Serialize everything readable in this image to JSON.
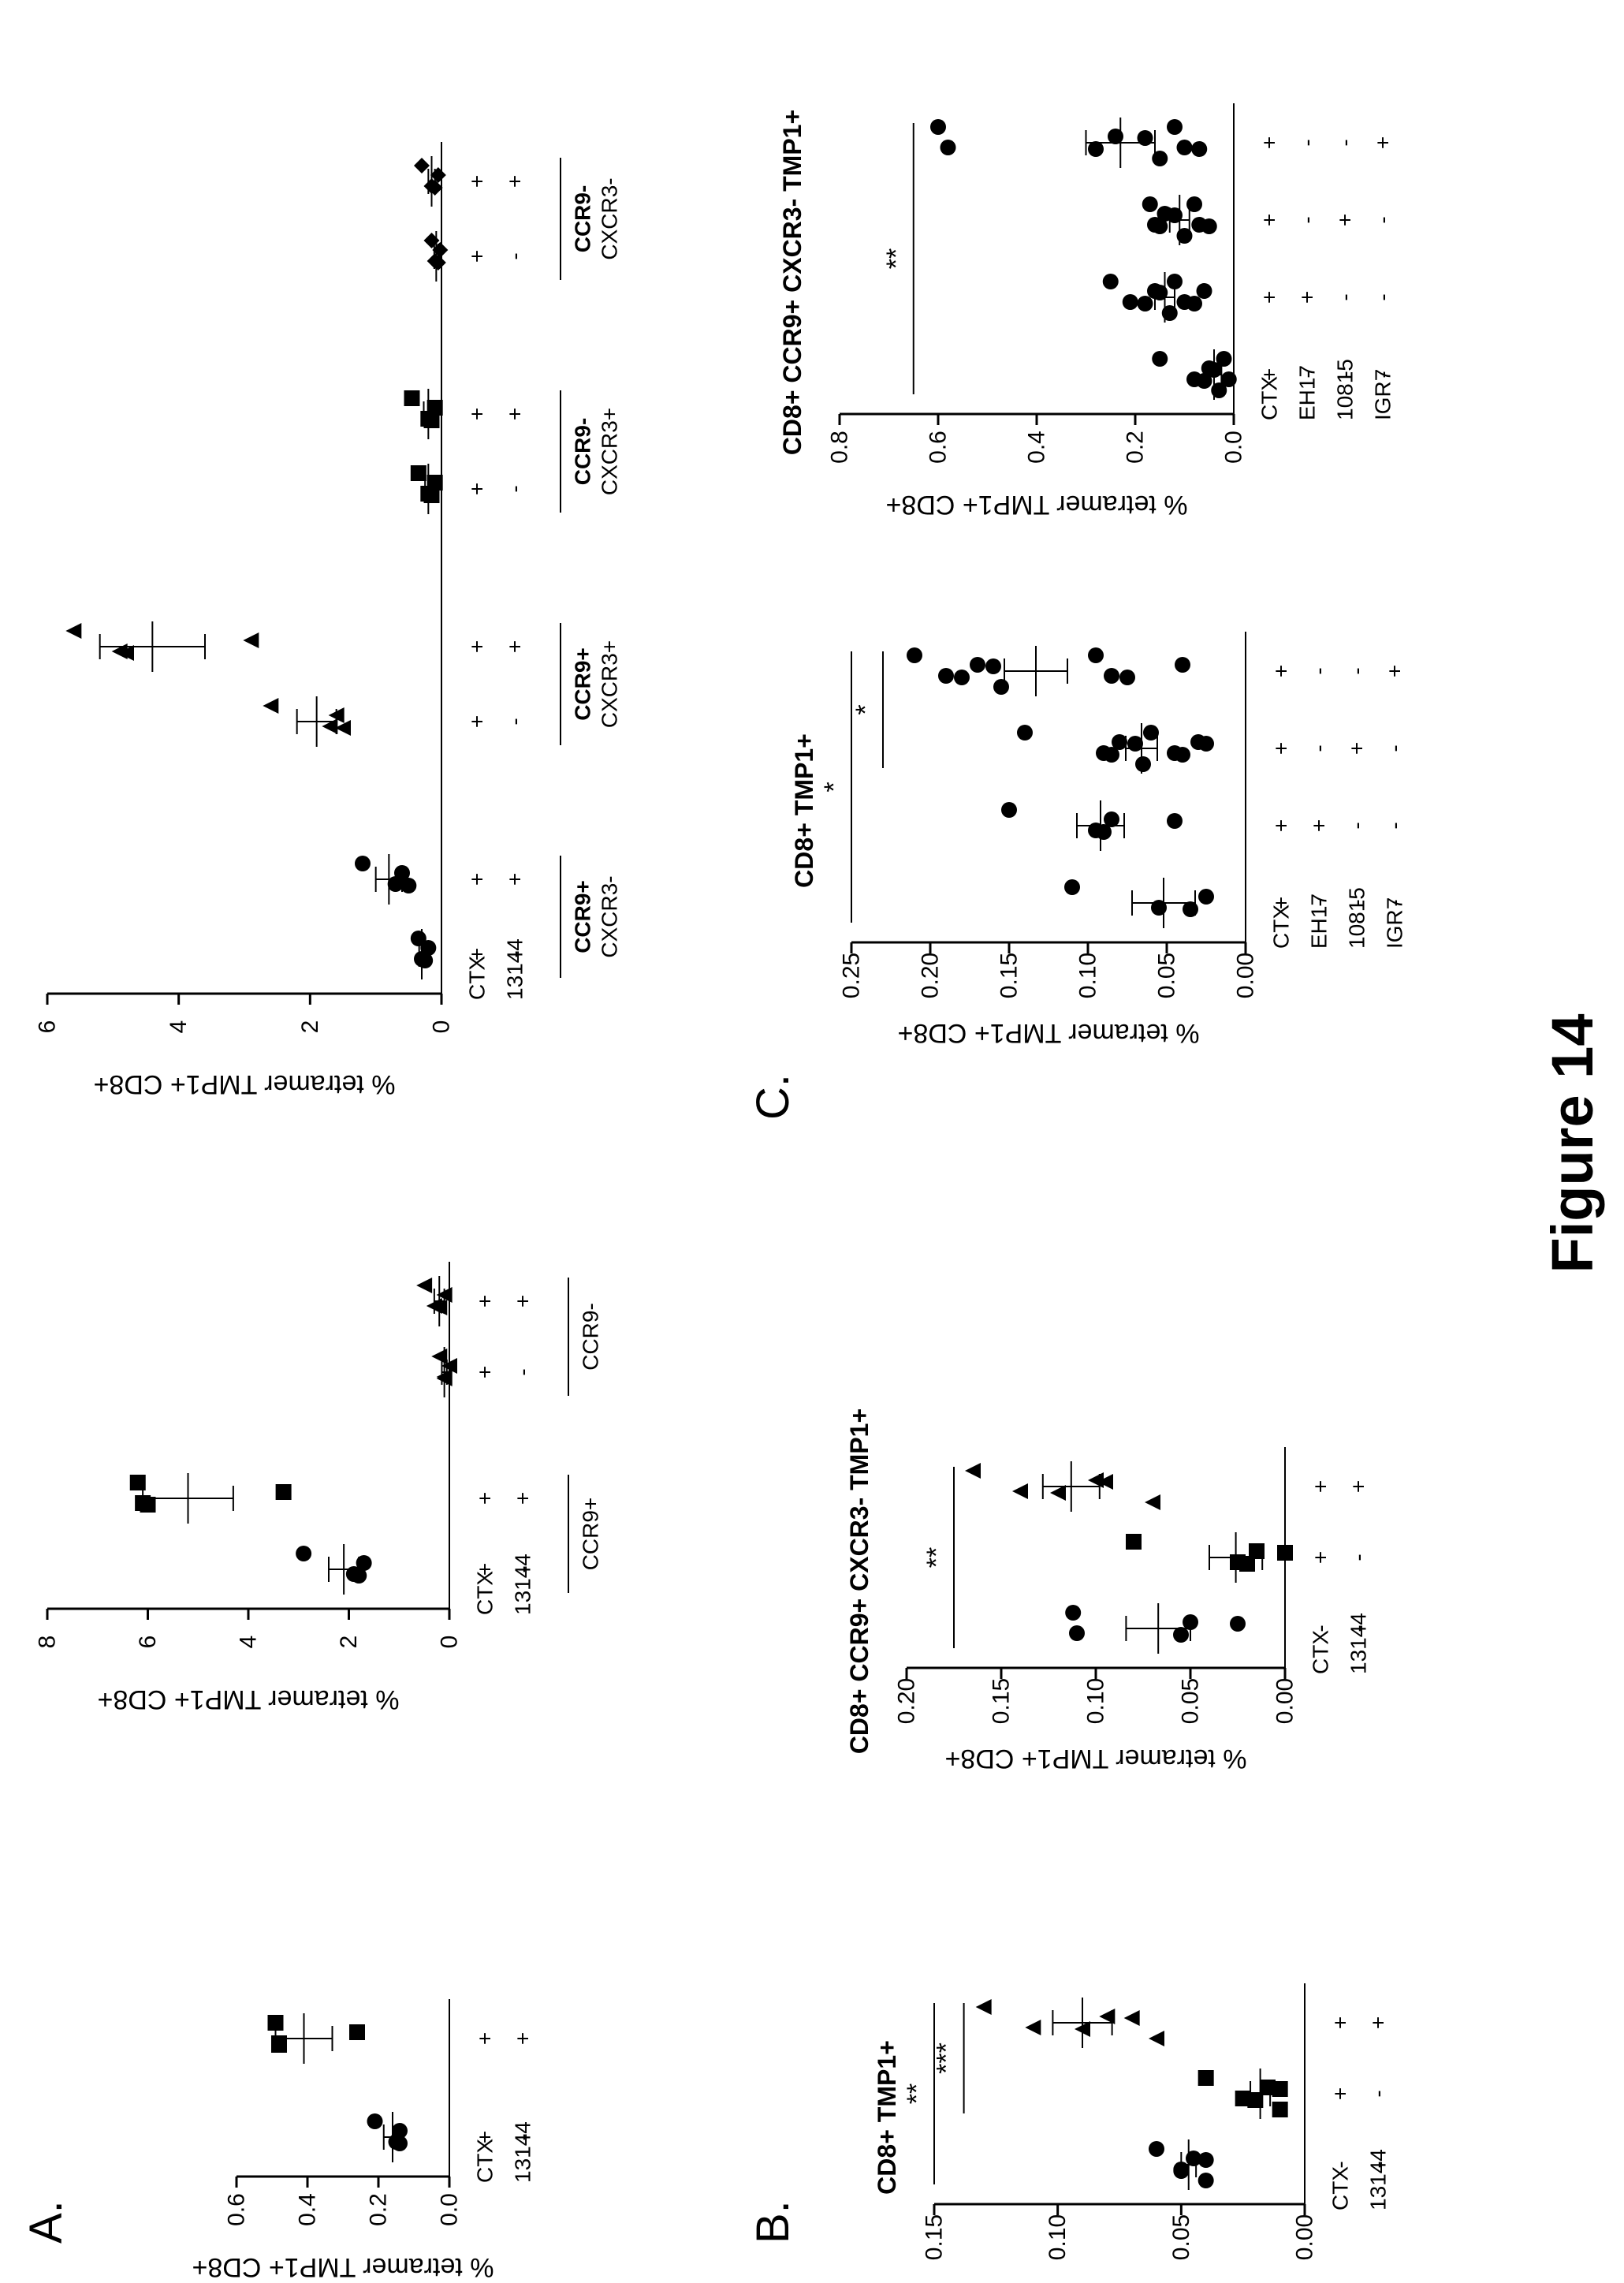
{
  "figure_label": "Figure 14",
  "panel_labels": {
    "A": "A.",
    "B": "B.",
    "C": "C."
  },
  "chart_data": [
    {
      "id": "A1",
      "type": "scatter",
      "title": "",
      "ylabel": "% tetramer TMP1+ CD8+",
      "ylim": [
        0,
        0.6
      ],
      "yticks": [
        "0.0",
        "0.2",
        "0.4",
        "0.6"
      ],
      "row_labels": [
        "CTX",
        "13144"
      ],
      "conditions": [
        [
          "+",
          "-"
        ],
        [
          "+",
          "+"
        ]
      ],
      "groups": [],
      "series": [
        {
          "marker": "circle",
          "values": [
            0.21,
            0.15,
            0.14,
            0.14
          ],
          "mean": 0.16,
          "sem": 0.025
        },
        {
          "marker": "square",
          "values": [
            0.49,
            0.48,
            0.48,
            0.26
          ],
          "mean": 0.41,
          "sem": 0.08
        }
      ],
      "significance": []
    },
    {
      "id": "A2",
      "type": "scatter",
      "title": "",
      "ylabel": "% tetramer TMP1+ CD8+",
      "ylim": [
        0,
        8
      ],
      "yticks": [
        "0",
        "2",
        "4",
        "6",
        "8"
      ],
      "row_labels": [
        "CTX",
        "13144"
      ],
      "conditions": [
        [
          "+",
          "-"
        ],
        [
          "+",
          "+"
        ],
        [
          "+",
          "-"
        ],
        [
          "+",
          "+"
        ]
      ],
      "groups": [
        {
          "label": "CCR9+",
          "from": 0,
          "to": 1
        },
        {
          "label": "CCR9-",
          "from": 2,
          "to": 3
        }
      ],
      "series": [
        {
          "marker": "circle",
          "values": [
            2.9,
            1.9,
            1.8,
            1.7
          ],
          "mean": 2.1,
          "sem": 0.3
        },
        {
          "marker": "square",
          "values": [
            6.2,
            6.1,
            6.0,
            3.3
          ],
          "mean": 5.2,
          "sem": 0.9
        },
        {
          "marker": "triangle",
          "values": [
            0.2,
            0.1,
            0.1,
            0.0
          ],
          "mean": 0.1,
          "sem": 0.05
        },
        {
          "marker": "triangle",
          "values": [
            0.5,
            0.3,
            0.2,
            0.1
          ],
          "mean": 0.2,
          "sem": 0.1
        }
      ],
      "significance": []
    },
    {
      "id": "A3",
      "type": "scatter",
      "title": "",
      "ylabel": "% tetramer TMP1+ CD8+",
      "ylim": [
        0,
        6
      ],
      "yticks": [
        "0",
        "2",
        "4",
        "6"
      ],
      "row_labels": [
        "CTX",
        "13144"
      ],
      "conditions": [
        [
          "+",
          "-"
        ],
        [
          "+",
          "+"
        ],
        [
          "+",
          "-"
        ],
        [
          "+",
          "+"
        ],
        [
          "+",
          "-"
        ],
        [
          "+",
          "+"
        ],
        [
          "+",
          "-"
        ],
        [
          "+",
          "+"
        ]
      ],
      "groups": [
        {
          "label": "CCR9+",
          "label2": "CXCR3-",
          "from": 0,
          "to": 1
        },
        {
          "label": "CCR9+",
          "label2": "CXCR3+",
          "from": 2,
          "to": 3
        },
        {
          "label": "CCR9-",
          "label2": "CXCR3+",
          "from": 4,
          "to": 5
        },
        {
          "label": "CCR9-",
          "label2": "CXCR3-",
          "from": 6,
          "to": 7
        }
      ],
      "series": [
        {
          "marker": "circle",
          "values": [
            0.35,
            0.3,
            0.25,
            0.2
          ],
          "mean": 0.3,
          "sem": 0.04
        },
        {
          "marker": "circle",
          "values": [
            1.2,
            0.7,
            0.5,
            0.6
          ],
          "mean": 0.8,
          "sem": 0.2
        },
        {
          "marker": "triangle",
          "values": [
            2.6,
            1.7,
            1.5,
            1.6
          ],
          "mean": 1.9,
          "sem": 0.3
        },
        {
          "marker": "triangle",
          "values": [
            5.6,
            4.9,
            4.8,
            2.9
          ],
          "mean": 4.4,
          "sem": 0.8
        },
        {
          "marker": "square",
          "values": [
            0.35,
            0.2,
            0.15,
            0.1
          ],
          "mean": 0.2,
          "sem": 0.05
        },
        {
          "marker": "square",
          "values": [
            0.45,
            0.2,
            0.15,
            0.1
          ],
          "mean": 0.2,
          "sem": 0.07
        },
        {
          "marker": "diamond",
          "values": [
            0.15,
            0.1,
            0.05,
            0.02
          ],
          "mean": 0.08,
          "sem": 0.03
        },
        {
          "marker": "diamond",
          "values": [
            0.3,
            0.15,
            0.1,
            0.05
          ],
          "mean": 0.15,
          "sem": 0.05
        }
      ],
      "significance": []
    },
    {
      "id": "B1",
      "type": "scatter",
      "title": "CD8+ TMP1+",
      "ylabel": "% tetramer TMP1+ CD8+",
      "ylim": [
        0,
        0.15
      ],
      "yticks": [
        "0.00",
        "0.05",
        "0.10",
        "0.15"
      ],
      "row_labels": [
        "CTX",
        "13144"
      ],
      "conditions": [
        [
          "-",
          "-"
        ],
        [
          "+",
          "-"
        ],
        [
          "+",
          "+"
        ]
      ],
      "groups": [],
      "series": [
        {
          "marker": "circle",
          "values": [
            0.06,
            0.05,
            0.05,
            0.045,
            0.04,
            0.04
          ],
          "mean": 0.047,
          "sem": 0.003
        },
        {
          "marker": "square",
          "values": [
            0.04,
            0.025,
            0.02,
            0.015,
            0.01,
            0.01
          ],
          "mean": 0.018,
          "sem": 0.004
        },
        {
          "marker": "triangle",
          "values": [
            0.13,
            0.11,
            0.09,
            0.08,
            0.07,
            0.06
          ],
          "mean": 0.09,
          "sem": 0.012
        }
      ],
      "significance": [
        {
          "label": "**",
          "from": 0,
          "to": 2,
          "level": 0.15
        },
        {
          "label": "***",
          "from": 1,
          "to": 2,
          "level": 0.138
        }
      ]
    },
    {
      "id": "B2",
      "type": "scatter",
      "title": "CD8+ CCR9+ CXCR3- TMP1+",
      "ylabel": "% tetramer TMP1+ CD8+",
      "ylim": [
        0,
        0.2
      ],
      "yticks": [
        "0.00",
        "0.05",
        "0.10",
        "0.15",
        "0.20"
      ],
      "row_labels": [
        "CTX",
        "13144"
      ],
      "conditions": [
        [
          "-",
          "-"
        ],
        [
          "+",
          "-"
        ],
        [
          "+",
          "+"
        ]
      ],
      "groups": [],
      "series": [
        {
          "marker": "circle",
          "values": [
            0.112,
            0.11,
            0.055,
            0.05,
            0.025
          ],
          "mean": 0.067,
          "sem": 0.017
        },
        {
          "marker": "square",
          "values": [
            0.08,
            0.025,
            0.02,
            0.015,
            0.0
          ],
          "mean": 0.026,
          "sem": 0.014
        },
        {
          "marker": "triangle",
          "values": [
            0.165,
            0.14,
            0.12,
            0.1,
            0.095,
            0.07
          ],
          "mean": 0.113,
          "sem": 0.015
        }
      ],
      "significance": [
        {
          "label": "**",
          "from": 0,
          "to": 2,
          "level": 0.175
        }
      ]
    },
    {
      "id": "C1",
      "type": "scatter",
      "title": "CD8+ TMP1+",
      "ylabel": "% tetramer TMP1+ CD8+",
      "ylim": [
        0,
        0.25
      ],
      "yticks": [
        "0.00",
        "0.05",
        "0.10",
        "0.15",
        "0.20",
        "0.25"
      ],
      "row_labels": [
        "CTX",
        "EH17",
        "10815",
        "IGR7"
      ],
      "conditions": [
        [
          "+",
          "-",
          "-",
          "-"
        ],
        [
          "+",
          "+",
          "-",
          "-"
        ],
        [
          "+",
          "-",
          "+",
          "-"
        ],
        [
          "+",
          "-",
          "-",
          "+"
        ]
      ],
      "groups": [],
      "series": [
        {
          "marker": "circle",
          "values": [
            0.11,
            0.055,
            0.035,
            0.025
          ],
          "mean": 0.052,
          "sem": 0.02
        },
        {
          "marker": "circle",
          "values": [
            0.15,
            0.095,
            0.09,
            0.085,
            0.045
          ],
          "mean": 0.092,
          "sem": 0.015
        },
        {
          "marker": "circle",
          "values": [
            0.14,
            0.09,
            0.085,
            0.08,
            0.07,
            0.065,
            0.06,
            0.045,
            0.04,
            0.03,
            0.025
          ],
          "mean": 0.066,
          "sem": 0.01
        },
        {
          "marker": "circle",
          "values": [
            0.21,
            0.19,
            0.18,
            0.17,
            0.16,
            0.155,
            0.095,
            0.085,
            0.075,
            0.04
          ],
          "mean": 0.133,
          "sem": 0.02
        }
      ],
      "significance": [
        {
          "label": "*",
          "from": 0,
          "to": 3,
          "level": 0.25
        },
        {
          "label": "*",
          "from": 2,
          "to": 3,
          "level": 0.23
        }
      ]
    },
    {
      "id": "C2",
      "type": "scatter",
      "title": "CD8+ CCR9+ CXCR3- TMP1+",
      "ylabel": "% tetramer TMP1+ CD8+",
      "ylim": [
        0,
        0.8
      ],
      "yticks": [
        "0.0",
        "0.2",
        "0.4",
        "0.6",
        "0.8"
      ],
      "row_labels": [
        "CTX",
        "EH17",
        "10815",
        "IGR7"
      ],
      "conditions": [
        [
          "+",
          "-",
          "-",
          "-"
        ],
        [
          "+",
          "+",
          "-",
          "-"
        ],
        [
          "+",
          "-",
          "+",
          "-"
        ],
        [
          "+",
          "-",
          "-",
          "+"
        ]
      ],
      "groups": [],
      "series": [
        {
          "marker": "circle",
          "values": [
            0.15,
            0.08,
            0.06,
            0.05,
            0.04,
            0.03,
            0.02,
            0.01
          ],
          "mean": 0.04,
          "sem": 0.015
        },
        {
          "marker": "circle",
          "values": [
            0.25,
            0.21,
            0.18,
            0.16,
            0.15,
            0.13,
            0.12,
            0.1,
            0.08,
            0.06
          ],
          "mean": 0.14,
          "sem": 0.02
        },
        {
          "marker": "circle",
          "values": [
            0.17,
            0.16,
            0.15,
            0.14,
            0.12,
            0.1,
            0.08,
            0.07,
            0.05
          ],
          "mean": 0.11,
          "sem": 0.02
        },
        {
          "marker": "circle",
          "values": [
            0.6,
            0.58,
            0.28,
            0.24,
            0.18,
            0.15,
            0.12,
            0.1,
            0.07
          ],
          "mean": 0.23,
          "sem": 0.07
        }
      ],
      "significance": [
        {
          "label": "**",
          "from": 0,
          "to": 3,
          "level": 0.65
        }
      ]
    }
  ]
}
